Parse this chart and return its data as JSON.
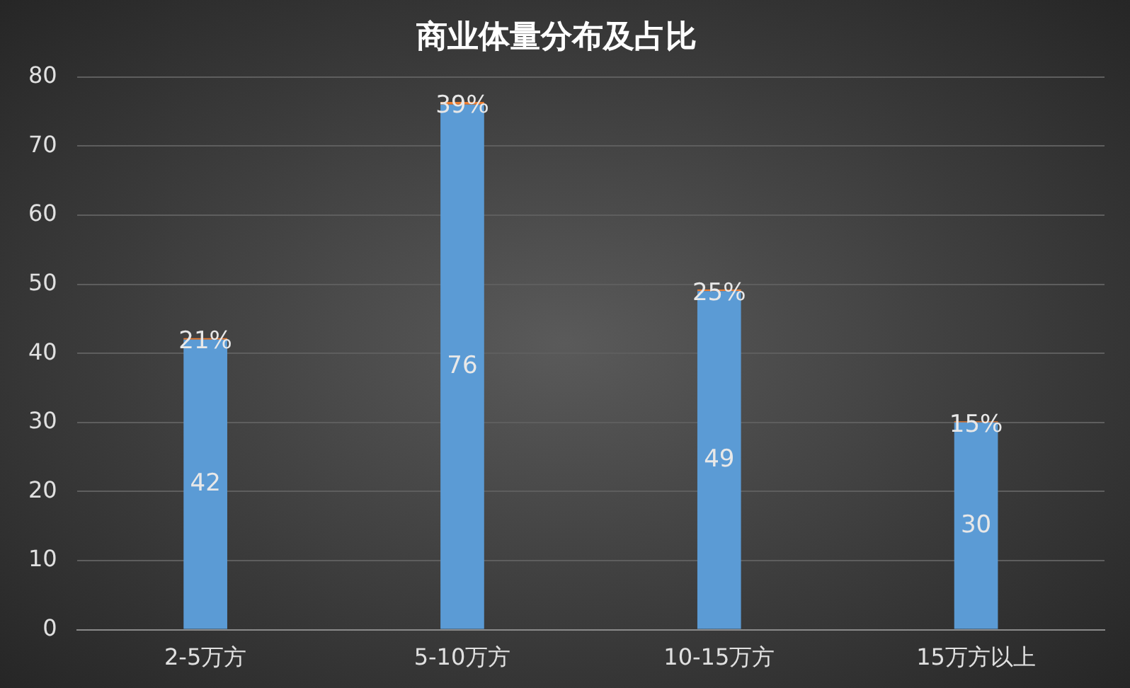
{
  "chart_data": {
    "type": "bar",
    "title": "商业体量分布及占比",
    "categories": [
      "2-5万方",
      "5-10万方",
      "10-15万方",
      "15万方以上"
    ],
    "stacked": true,
    "series": [
      {
        "color": "#5b9bd5",
        "values": [
          42,
          76,
          49,
          30
        ],
        "value_labels": [
          "42",
          "76",
          "49",
          "30"
        ]
      },
      {
        "color": "#ed7d31",
        "values": [
          0.21,
          0.39,
          0.25,
          0.15
        ],
        "value_labels": [
          "21%",
          "39%",
          "25%",
          "15%"
        ]
      }
    ],
    "ylim": [
      0,
      80
    ],
    "yticks": [
      0,
      10,
      20,
      30,
      40,
      50,
      60,
      70,
      80
    ],
    "grid": "y",
    "legend": false
  }
}
